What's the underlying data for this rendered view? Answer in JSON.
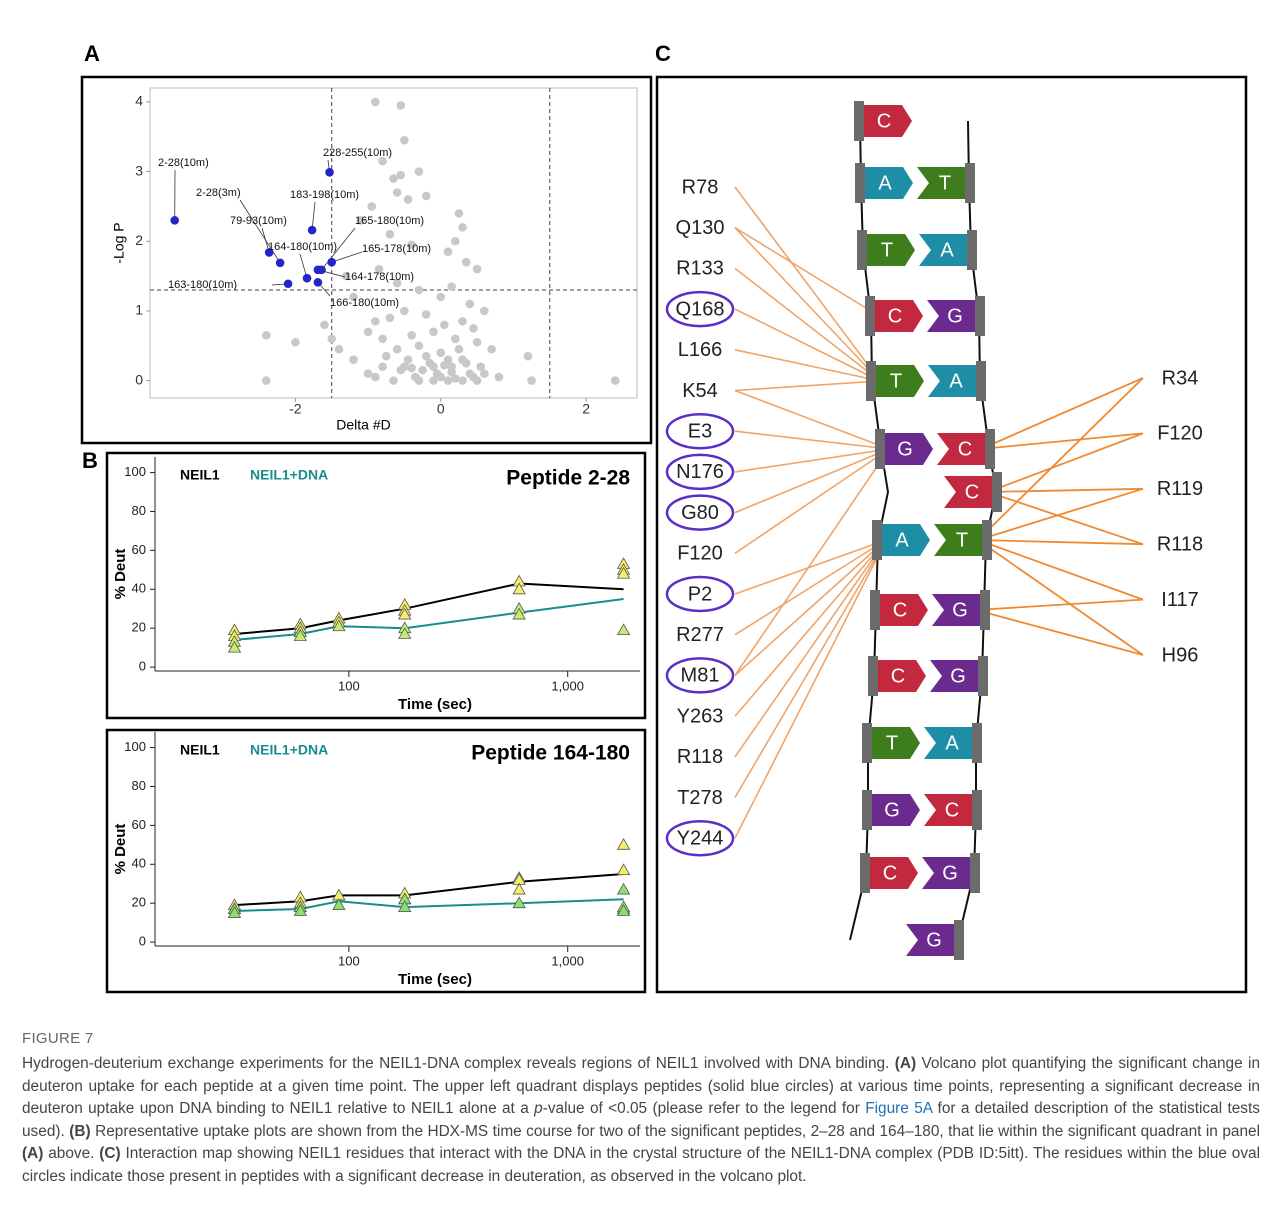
{
  "figure": {
    "panel_labels": [
      "A",
      "B",
      "C"
    ]
  },
  "chart_data": [
    {
      "type": "scatter",
      "xlabel": "Delta #D",
      "ylabel": "-Log P",
      "xlim": [
        -4,
        2.7
      ],
      "ylim": [
        -0.25,
        4.2
      ],
      "xticks": [
        -2,
        0,
        2
      ],
      "yticks": [
        0,
        1,
        2,
        3,
        4
      ],
      "thresholds": {
        "x": [
          -1.5,
          1.5
        ],
        "y": [
          1.3
        ]
      },
      "series": [
        {
          "color": "#c8c8c8",
          "x": [
            -0.9,
            -0.55,
            -0.5,
            -0.8,
            -0.65,
            -0.55,
            -0.45,
            -0.3,
            -0.6,
            -0.95,
            -0.2,
            0.25,
            0.3,
            0.2,
            -1.1,
            -0.7,
            -0.4,
            0.1,
            0.35,
            0.5,
            -0.85,
            -1.3,
            -1.2,
            -0.6,
            -0.3,
            0.0,
            0.15,
            0.4,
            0.6,
            -0.5,
            -0.9,
            -0.7,
            -0.2,
            0.05,
            0.3,
            0.45,
            -1.4,
            -1.0,
            -0.8,
            -0.4,
            -0.1,
            0.2,
            0.5,
            0.7,
            -0.6,
            -0.3,
            0.0,
            0.25,
            -1.2,
            -0.75,
            -0.45,
            -0.15,
            0.1,
            0.35,
            0.55,
            -0.55,
            -0.25,
            -0.05,
            0.15,
            0.4,
            -0.9,
            -0.35,
            0.0,
            0.2,
            0.45,
            -0.65,
            -0.3,
            -0.1,
            0.1,
            0.3,
            -2.4,
            -2.0,
            -2.4,
            -1.6,
            1.2,
            1.25,
            2.4,
            -0.5,
            -0.2,
            0.05,
            0.3,
            -0.8,
            -0.4,
            -0.1,
            0.15,
            0.6,
            -1.5,
            -1.0,
            0.8,
            0.5
          ],
          "values": [
            4.0,
            3.95,
            3.45,
            3.15,
            2.9,
            2.95,
            2.6,
            3.0,
            2.7,
            2.5,
            2.65,
            2.4,
            2.2,
            2.0,
            2.3,
            2.1,
            1.95,
            1.85,
            1.7,
            1.6,
            1.6,
            1.5,
            1.2,
            1.4,
            1.3,
            1.2,
            1.35,
            1.1,
            1.0,
            1.0,
            0.85,
            0.9,
            0.95,
            0.8,
            0.85,
            0.75,
            0.45,
            0.7,
            0.6,
            0.65,
            0.7,
            0.6,
            0.55,
            0.45,
            0.45,
            0.5,
            0.4,
            0.45,
            0.3,
            0.35,
            0.3,
            0.25,
            0.3,
            0.25,
            0.2,
            0.15,
            0.15,
            0.1,
            0.12,
            0.1,
            0.05,
            0.05,
            0.05,
            0.03,
            0.05,
            0.0,
            0.0,
            0.0,
            0.0,
            0.0,
            0.65,
            0.55,
            0.0,
            0.8,
            0.35,
            0.0,
            0.0,
            0.2,
            0.35,
            0.22,
            0.3,
            0.2,
            0.18,
            0.2,
            0.2,
            0.1,
            0.6,
            0.1,
            0.05,
            0.0
          ]
        },
        {
          "color": "#2424c8",
          "x": [
            -3.66,
            -1.53,
            -1.77,
            -2.21,
            -2.36,
            -1.84,
            -1.64,
            -1.5,
            -1.69,
            -2.1,
            -1.69
          ],
          "values": [
            2.3,
            2.99,
            2.16,
            1.69,
            1.84,
            1.47,
            1.59,
            1.7,
            1.59,
            1.39,
            1.41
          ],
          "labels": [
            "2-28(10m)",
            "228-255(10m)",
            "183-198(10m)",
            "2-28(3m)",
            "79-93(10m)",
            "164-180(10m)",
            "165-180(10m)",
            "165-178(10m)",
            "164-178(10m)",
            "163-180(10m)",
            "166-180(10m)"
          ]
        }
      ]
    },
    {
      "type": "line",
      "title": "Peptide 2-28",
      "xlabel": "Time (sec)",
      "ylabel": "% Deut",
      "log_x": true,
      "xlim": [
        13,
        2140
      ],
      "ylim": [
        -2,
        108
      ],
      "xticks": [
        100,
        {
          "value": 1000,
          "label": "1,000"
        }
      ],
      "yticks": [
        0,
        20,
        40,
        60,
        80,
        100
      ],
      "series": [
        {
          "name": "NEIL1",
          "color": "#000000",
          "marker_color": "#f4ee6a",
          "x": [
            30,
            60,
            90,
            180,
            600,
            1800
          ],
          "values": [
            17,
            20,
            24,
            30,
            43,
            40
          ],
          "replicates": {
            "x": [
              30,
              30,
              60,
              60,
              90,
              90,
              180,
              180,
              180,
              600,
              600,
              1800,
              1800,
              1800
            ],
            "values": [
              19,
              16,
              22,
              20,
              25,
              23,
              32,
              29,
              27,
              44,
              40,
              53,
              50,
              48
            ]
          }
        },
        {
          "name": "NEIL1+DNA",
          "color": "#1a8c8c",
          "marker_color": "#c4ec72",
          "x": [
            30,
            60,
            90,
            180,
            600,
            1800
          ],
          "values": [
            14,
            17,
            21,
            20,
            28,
            35
          ],
          "replicates": {
            "x": [
              30,
              30,
              60,
              60,
              90,
              180,
              180,
              600,
              600,
              1800
            ],
            "values": [
              13,
              10,
              18,
              16,
              21,
              20,
              17,
              30,
              27,
              19
            ]
          }
        }
      ]
    },
    {
      "type": "line",
      "title": "Peptide 164-180",
      "xlabel": "Time (sec)",
      "ylabel": "% Deut",
      "log_x": true,
      "xlim": [
        13,
        2140
      ],
      "ylim": [
        -2,
        108
      ],
      "xticks": [
        100,
        {
          "value": 1000,
          "label": "1,000"
        }
      ],
      "yticks": [
        0,
        20,
        40,
        60,
        80,
        100
      ],
      "series": [
        {
          "name": "NEIL1",
          "color": "#000000",
          "marker_color": "#f4ee6a",
          "x": [
            30,
            60,
            90,
            180,
            600,
            1800
          ],
          "values": [
            19,
            21,
            24,
            24,
            31,
            35
          ],
          "replicates": {
            "x": [
              30,
              30,
              60,
              60,
              90,
              180,
              180,
              600,
              600,
              600,
              1800,
              1800,
              1800
            ],
            "values": [
              19,
              17,
              23,
              20,
              24,
              25,
              22,
              33,
              32,
              27,
              50,
              37,
              17
            ]
          }
        },
        {
          "name": "NEIL1+DNA",
          "color": "#1a8c8c",
          "marker_color": "#8ee06e",
          "x": [
            30,
            60,
            90,
            180,
            600,
            1800
          ],
          "values": [
            16,
            17,
            21,
            18,
            20,
            22
          ],
          "replicates": {
            "x": [
              30,
              30,
              60,
              60,
              90,
              180,
              180,
              600,
              1800,
              1800,
              1800
            ],
            "values": [
              17,
              15,
              18,
              16,
              19,
              22,
              18,
              20,
              27,
              18,
              16
            ]
          }
        }
      ]
    }
  ],
  "interaction_map": {
    "base_colors": {
      "A": "#1d8ea6",
      "T": "#3e7d1b",
      "C": "#c3293e",
      "G": "#6a2a8e"
    },
    "bases": [
      {
        "left": "C"
      },
      {
        "left": "A",
        "right": "T"
      },
      {
        "left": "T",
        "right": "A"
      },
      {
        "left": "C",
        "right": "G"
      },
      {
        "left": "T",
        "right": "A"
      },
      {
        "left": "G",
        "right": "C"
      },
      {
        "right": "C"
      },
      {
        "left": "A",
        "right": "T"
      },
      {
        "left": "C",
        "right": "G"
      },
      {
        "left": "C",
        "right": "G"
      },
      {
        "left": "T",
        "right": "A"
      },
      {
        "left": "G",
        "right": "C"
      },
      {
        "left": "C",
        "right": "G"
      },
      {
        "right": "G"
      }
    ],
    "left_residues": [
      {
        "label": "R78",
        "circled": false,
        "targets": [
          4
        ]
      },
      {
        "label": "Q130",
        "circled": false,
        "targets": [
          3,
          4
        ]
      },
      {
        "label": "R133",
        "circled": false,
        "targets": [
          4
        ]
      },
      {
        "label": "Q168",
        "circled": true,
        "targets": [
          4
        ]
      },
      {
        "label": "L166",
        "circled": false,
        "targets": [
          4
        ]
      },
      {
        "label": "K54",
        "circled": false,
        "targets": [
          4,
          5
        ]
      },
      {
        "label": "E3",
        "circled": true,
        "targets": [
          5
        ]
      },
      {
        "label": "N176",
        "circled": true,
        "targets": [
          5
        ]
      },
      {
        "label": "G80",
        "circled": true,
        "targets": [
          5
        ]
      },
      {
        "label": "F120",
        "circled": false,
        "targets": [
          5
        ]
      },
      {
        "label": "P2",
        "circled": true,
        "targets": [
          7
        ]
      },
      {
        "label": "R277",
        "circled": false,
        "targets": [
          7
        ]
      },
      {
        "label": "M81",
        "circled": true,
        "targets": [
          5,
          7
        ]
      },
      {
        "label": "Y263",
        "circled": false,
        "targets": [
          7
        ]
      },
      {
        "label": "R118",
        "circled": false,
        "targets": [
          7
        ]
      },
      {
        "label": "T278",
        "circled": false,
        "targets": [
          7
        ]
      },
      {
        "label": "Y244",
        "circled": true,
        "targets": [
          7
        ]
      }
    ],
    "right_residues": [
      {
        "label": "R34",
        "targets": [
          5,
          7
        ]
      },
      {
        "label": "F120",
        "targets": [
          5,
          6
        ]
      },
      {
        "label": "R119",
        "targets": [
          6,
          7
        ]
      },
      {
        "label": "R118",
        "targets": [
          6,
          7
        ]
      },
      {
        "label": "I117",
        "targets": [
          7,
          8
        ]
      },
      {
        "label": "H96",
        "targets": [
          7,
          8
        ]
      }
    ]
  },
  "caption": {
    "title": "FIGURE 7",
    "runs": [
      {
        "text": "Hydrogen-deuterium exchange experiments for the NEIL1-DNA complex reveals regions of NEIL1 involved with DNA binding. ",
        "style": "plain"
      },
      {
        "text": "(A)",
        "style": "bold"
      },
      {
        "text": " Volcano plot quantifying the significant change in deuteron uptake for each peptide at a given time point. The upper left quadrant displays peptides (solid blue circles) at various time points, representing a significant decrease in deuteron uptake upon DNA binding to NEIL1 relative to NEIL1 alone at a ",
        "style": "plain"
      },
      {
        "text": "p",
        "style": "italic"
      },
      {
        "text": "-value of <0.05 (please refer to the legend for ",
        "style": "plain"
      },
      {
        "text": "Figure 5A",
        "style": "link"
      },
      {
        "text": " for a detailed description of the statistical tests used). ",
        "style": "plain"
      },
      {
        "text": "(B)",
        "style": "bold"
      },
      {
        "text": " Representative uptake plots are shown from the HDX-MS time course for two of the significant peptides, 2–28 and 164–180, that lie within the significant quadrant in panel ",
        "style": "plain"
      },
      {
        "text": "(A)",
        "style": "bold"
      },
      {
        "text": " above. ",
        "style": "plain"
      },
      {
        "text": "(C)",
        "style": "bold"
      },
      {
        "text": " Interaction map showing NEIL1 residues that interact with the DNA in the crystal structure of the NEIL1-DNA complex (PDB ID:5itt). The residues within the blue oval circles indicate those present in peptides with a significant decrease in deuteration, as observed in the volcano plot.",
        "style": "plain"
      }
    ]
  }
}
